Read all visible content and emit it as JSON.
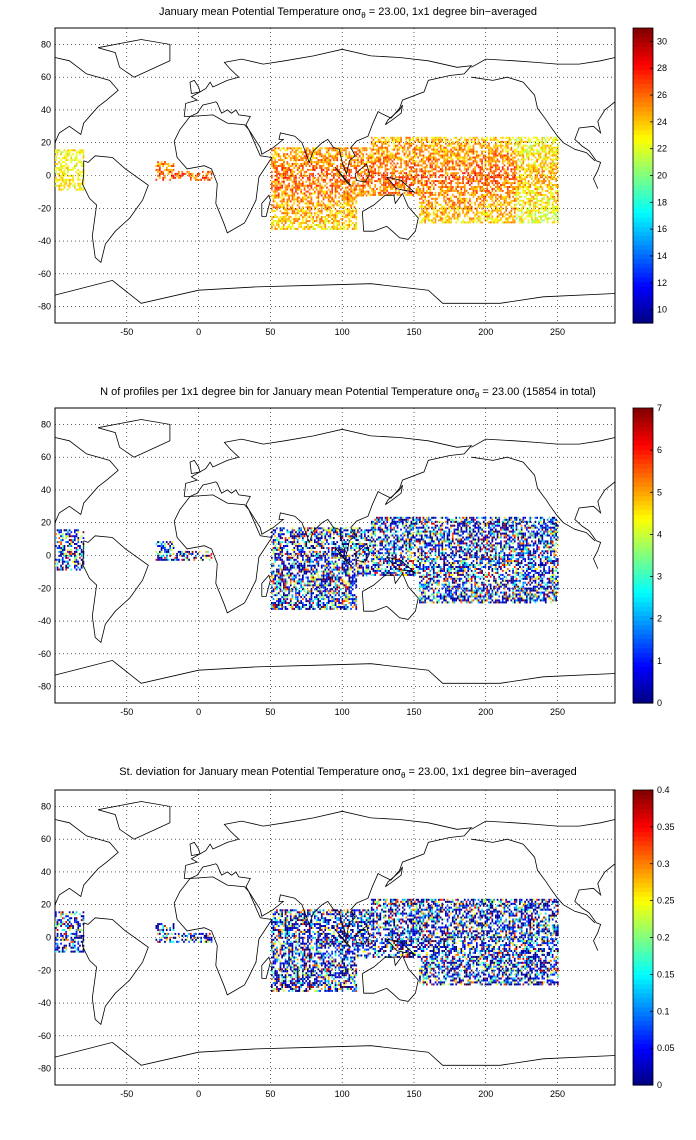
{
  "figure": {
    "panels": [
      {
        "title_prefix": "January mean Potential Temperature on",
        "sigma": "σ",
        "sigma_sub": "θ",
        "title_suffix": " = 23.00, 1x1 degree bin−averaged",
        "colorbar": {
          "min": 9,
          "max": 31,
          "ticks": [
            "10",
            "12",
            "14",
            "16",
            "18",
            "20",
            "22",
            "24",
            "26",
            "28",
            "30"
          ]
        },
        "field": "mean_temperature"
      },
      {
        "title_prefix": "N of profiles per 1x1 degree bin for January mean Potential Temperature on",
        "sigma": "σ",
        "sigma_sub": "θ",
        "title_suffix": " = 23.00 (15854 in total)",
        "colorbar": {
          "min": 0,
          "max": 7,
          "ticks": [
            "0",
            "1",
            "2",
            "3",
            "4",
            "5",
            "6",
            "7"
          ]
        },
        "field": "profile_count"
      },
      {
        "title_prefix": "St. deviation for January mean Potential Temperature on",
        "sigma": "σ",
        "sigma_sub": "θ",
        "title_suffix": " = 23.00, 1x1 degree bin−averaged",
        "colorbar": {
          "min": 0,
          "max": 0.4,
          "ticks": [
            "0",
            "0.05",
            "0.1",
            "0.15",
            "0.2",
            "0.25",
            "0.3",
            "0.35",
            "0.4"
          ]
        },
        "field": "std_deviation"
      }
    ],
    "x_ticks": [
      "-50",
      "0",
      "50",
      "100",
      "150",
      "200",
      "250"
    ],
    "y_ticks": [
      "80",
      "60",
      "40",
      "20",
      "0",
      "-20",
      "-40",
      "-60",
      "-80"
    ],
    "x_range": [
      -100,
      290
    ],
    "y_range": [
      -90,
      90
    ],
    "grid": "dotted",
    "colormap": "jet"
  }
}
